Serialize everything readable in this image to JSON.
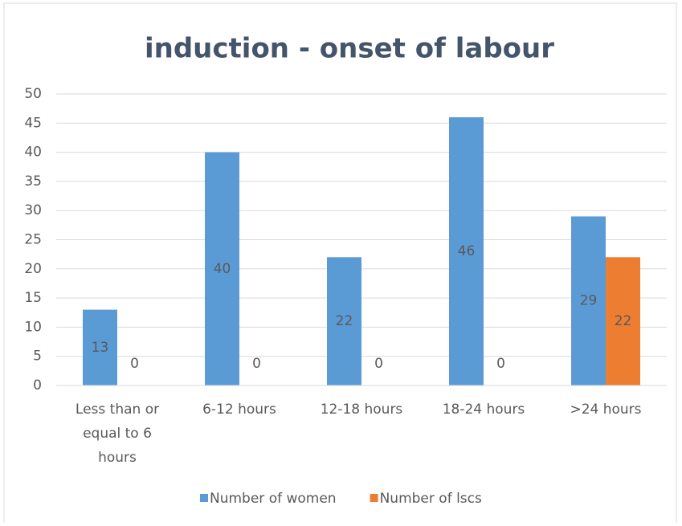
{
  "chart_data": {
    "type": "bar",
    "title": "induction - onset of labour",
    "categories": [
      "Less than or equal to 6 hours",
      "6-12 hours",
      "12-18 hours",
      "18-24 hours",
      ">24 hours"
    ],
    "series": [
      {
        "name": "Number of women",
        "color": "#5b9bd5",
        "values": [
          13,
          40,
          22,
          46,
          29
        ]
      },
      {
        "name": "Number of lscs",
        "color": "#ed7d31",
        "values": [
          0,
          0,
          0,
          0,
          22
        ]
      }
    ],
    "ylim": [
      0,
      50
    ],
    "yticks": [
      0,
      5,
      10,
      15,
      20,
      25,
      30,
      35,
      40,
      45,
      50
    ],
    "grid": true,
    "legend": "bottom"
  }
}
